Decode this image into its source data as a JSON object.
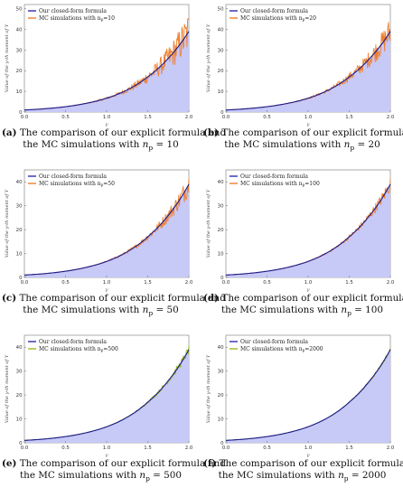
{
  "chart_data": [
    {
      "type": "area",
      "panel_tag": "(a)",
      "caption_line1": "The comparison of our explicit formula and",
      "caption_line2": "the MC simulations with",
      "caption_math": "n",
      "caption_math_sub": "p",
      "caption_eq": " = 10",
      "xlabel": "γ",
      "ylabel": "Value of the γ-th moment of Y",
      "x_ticks": [
        "0.0",
        "0.5",
        "1.0",
        "1.5",
        "2.0"
      ],
      "y_ticks": [
        "0",
        "10",
        "20",
        "30",
        "40",
        "50"
      ],
      "xlim": [
        0,
        2
      ],
      "ylim": [
        0,
        52
      ],
      "legend": {
        "placement": "top-left",
        "formula": "Our closed-form formula",
        "mc": "MC simulations with n",
        "mc_sub": "p",
        "mc_eq": "=10"
      },
      "noise": 0.17,
      "mc_color": "#ee7f2d"
    },
    {
      "type": "area",
      "panel_tag": "(b)",
      "caption_line1": "The comparison of our explicit formula and",
      "caption_line2": "the MC simulations with",
      "caption_math": "n",
      "caption_math_sub": "p",
      "caption_eq": " = 20",
      "xlabel": "γ",
      "ylabel": "Value of the γ-th moment of Y",
      "x_ticks": [
        "0.0",
        "0.5",
        "1.0",
        "1.5",
        "2.0"
      ],
      "y_ticks": [
        "0",
        "10",
        "20",
        "30",
        "40",
        "50"
      ],
      "xlim": [
        0,
        2
      ],
      "ylim": [
        0,
        52
      ],
      "legend": {
        "placement": "top-left",
        "formula": "Our closed-form formula",
        "mc": "MC simulations with n",
        "mc_sub": "p",
        "mc_eq": "=20"
      },
      "noise": 0.12,
      "mc_color": "#ee7f2d"
    },
    {
      "type": "area",
      "panel_tag": "(c)",
      "caption_line1": "The comparison of our explicit formula and",
      "caption_line2": "the MC simulations with",
      "caption_math": "n",
      "caption_math_sub": "p",
      "caption_eq": " = 50",
      "xlabel": "γ",
      "ylabel": "Value of the γ-th moment of Y",
      "x_ticks": [
        "0.0",
        "0.5",
        "1.0",
        "1.5",
        "2.0"
      ],
      "y_ticks": [
        "0",
        "10",
        "20",
        "30",
        "40"
      ],
      "xlim": [
        0,
        2
      ],
      "ylim": [
        0,
        45
      ],
      "legend": {
        "placement": "top-left",
        "formula": "Our closed-form formula",
        "mc": "MC simulations with n",
        "mc_sub": "p",
        "mc_eq": "=50"
      },
      "noise": 0.08,
      "mc_color": "#ee7f2d"
    },
    {
      "type": "area",
      "panel_tag": "(d)",
      "caption_line1": "The comparison of our explicit formula and",
      "caption_line2": "the MC simulations with",
      "caption_math": "n",
      "caption_math_sub": "p",
      "caption_eq": " = 100",
      "xlabel": "γ",
      "ylabel": "Value of the γ-th moment of Y",
      "x_ticks": [
        "0.0",
        "0.5",
        "1.0",
        "1.5",
        "2.0"
      ],
      "y_ticks": [
        "0",
        "10",
        "20",
        "30",
        "40"
      ],
      "xlim": [
        0,
        2
      ],
      "ylim": [
        0,
        45
      ],
      "legend": {
        "placement": "top-left",
        "formula": "Our closed-form formula",
        "mc": "MC simulations with n",
        "mc_sub": "p",
        "mc_eq": "=100"
      },
      "noise": 0.05,
      "mc_color": "#ee7f2d"
    },
    {
      "type": "area",
      "panel_tag": "(e)",
      "caption_line1": "The comparison of our explicit formula and",
      "caption_line2": "the MC simulations with",
      "caption_math": "n",
      "caption_math_sub": "p",
      "caption_eq": " = 500",
      "xlabel": "γ",
      "ylabel": "Value of the γ-th moment of Y",
      "x_ticks": [
        "0.0",
        "0.5",
        "1.0",
        "1.5",
        "2.0"
      ],
      "y_ticks": [
        "0",
        "10",
        "20",
        "30",
        "40"
      ],
      "xlim": [
        0,
        2
      ],
      "ylim": [
        0,
        45
      ],
      "legend": {
        "placement": "top-left",
        "formula": "Our closed-form formula",
        "mc": "MC simulations with n",
        "mc_sub": "p",
        "mc_eq": "=500"
      },
      "noise": 0.03,
      "mc_color": "#9cbc1e"
    },
    {
      "type": "area",
      "panel_tag": "(f)",
      "caption_line1": "The comparison of our explicit formula and",
      "caption_line2": "the MC simulations with",
      "caption_math": "n",
      "caption_math_sub": "p",
      "caption_eq": " = 2000",
      "xlabel": "γ",
      "ylabel": "Value of the γ-th moment of Y",
      "x_ticks": [
        "0.0",
        "0.5",
        "1.0",
        "1.5",
        "2.0"
      ],
      "y_ticks": [
        "0",
        "10",
        "20",
        "30",
        "40"
      ],
      "xlim": [
        0,
        2
      ],
      "ylim": [
        0,
        45
      ],
      "legend": {
        "placement": "top-left",
        "formula": "Our closed-form formula",
        "mc": "MC simulations with n",
        "mc_sub": "p",
        "mc_eq": "=2000"
      },
      "noise": 0.015,
      "mc_color": "#9cbc1e"
    }
  ],
  "curve": {
    "gamma": [
      0.0,
      0.25,
      0.5,
      0.75,
      1.0,
      1.25,
      1.5,
      1.75,
      2.0
    ],
    "moment": [
      1.0,
      1.6,
      2.6,
      4.2,
      6.7,
      10.7,
      17.0,
      26.0,
      39.0
    ]
  },
  "colors": {
    "formula_line": "#1a1a8c",
    "fill": "#c7c9f7",
    "legend_formula": "#2c2cb0"
  }
}
